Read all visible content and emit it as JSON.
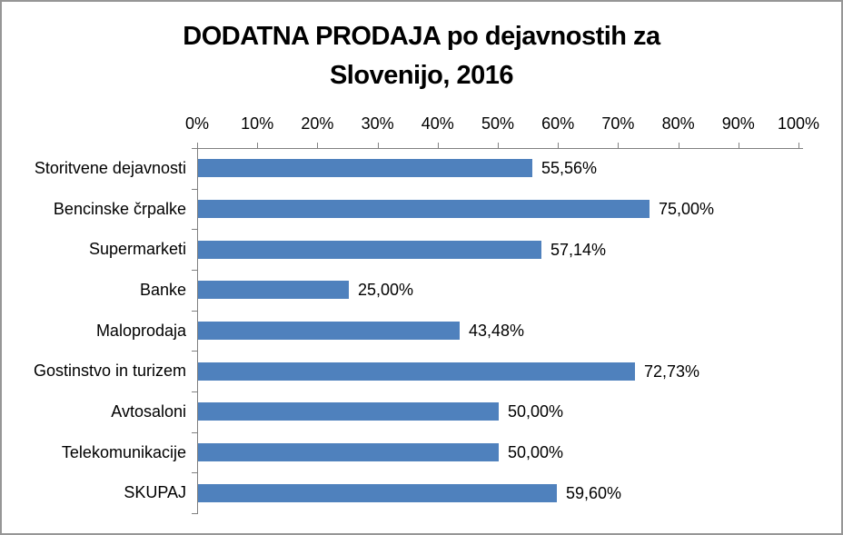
{
  "chart_data": {
    "type": "bar",
    "orientation": "horizontal",
    "title": "DODATNA PRODAJA po dejavnostih za Slovenijo, 2016",
    "title_lines": [
      "DODATNA PRODAJA po dejavnostih za",
      "Slovenijo, 2016"
    ],
    "categories": [
      "Storitvene dejavnosti",
      "Bencinske črpalke",
      "Supermarketi",
      "Banke",
      "Maloprodaja",
      "Gostinstvo in turizem",
      "Avtosaloni",
      "Telekomunikacije",
      "SKUPAJ"
    ],
    "values": [
      55.56,
      75.0,
      57.14,
      25.0,
      43.48,
      72.73,
      50.0,
      50.0,
      59.6
    ],
    "value_labels": [
      "55,56%",
      "75,00%",
      "57,14%",
      "25,00%",
      "43,48%",
      "72,73%",
      "50,00%",
      "50,00%",
      "59,60%"
    ],
    "x_tick_labels": [
      "0%",
      "10%",
      "20%",
      "30%",
      "40%",
      "50%",
      "60%",
      "70%",
      "80%",
      "90%",
      "100%"
    ],
    "xlim": [
      0,
      100
    ],
    "xlabel": "",
    "ylabel": "",
    "grid": false,
    "legend": false,
    "bar_color": "#4F81BD",
    "axis_color": "#808080",
    "text_color": "#000000",
    "frame_border_color": "#969696",
    "background_color": "#FFFFFF"
  }
}
